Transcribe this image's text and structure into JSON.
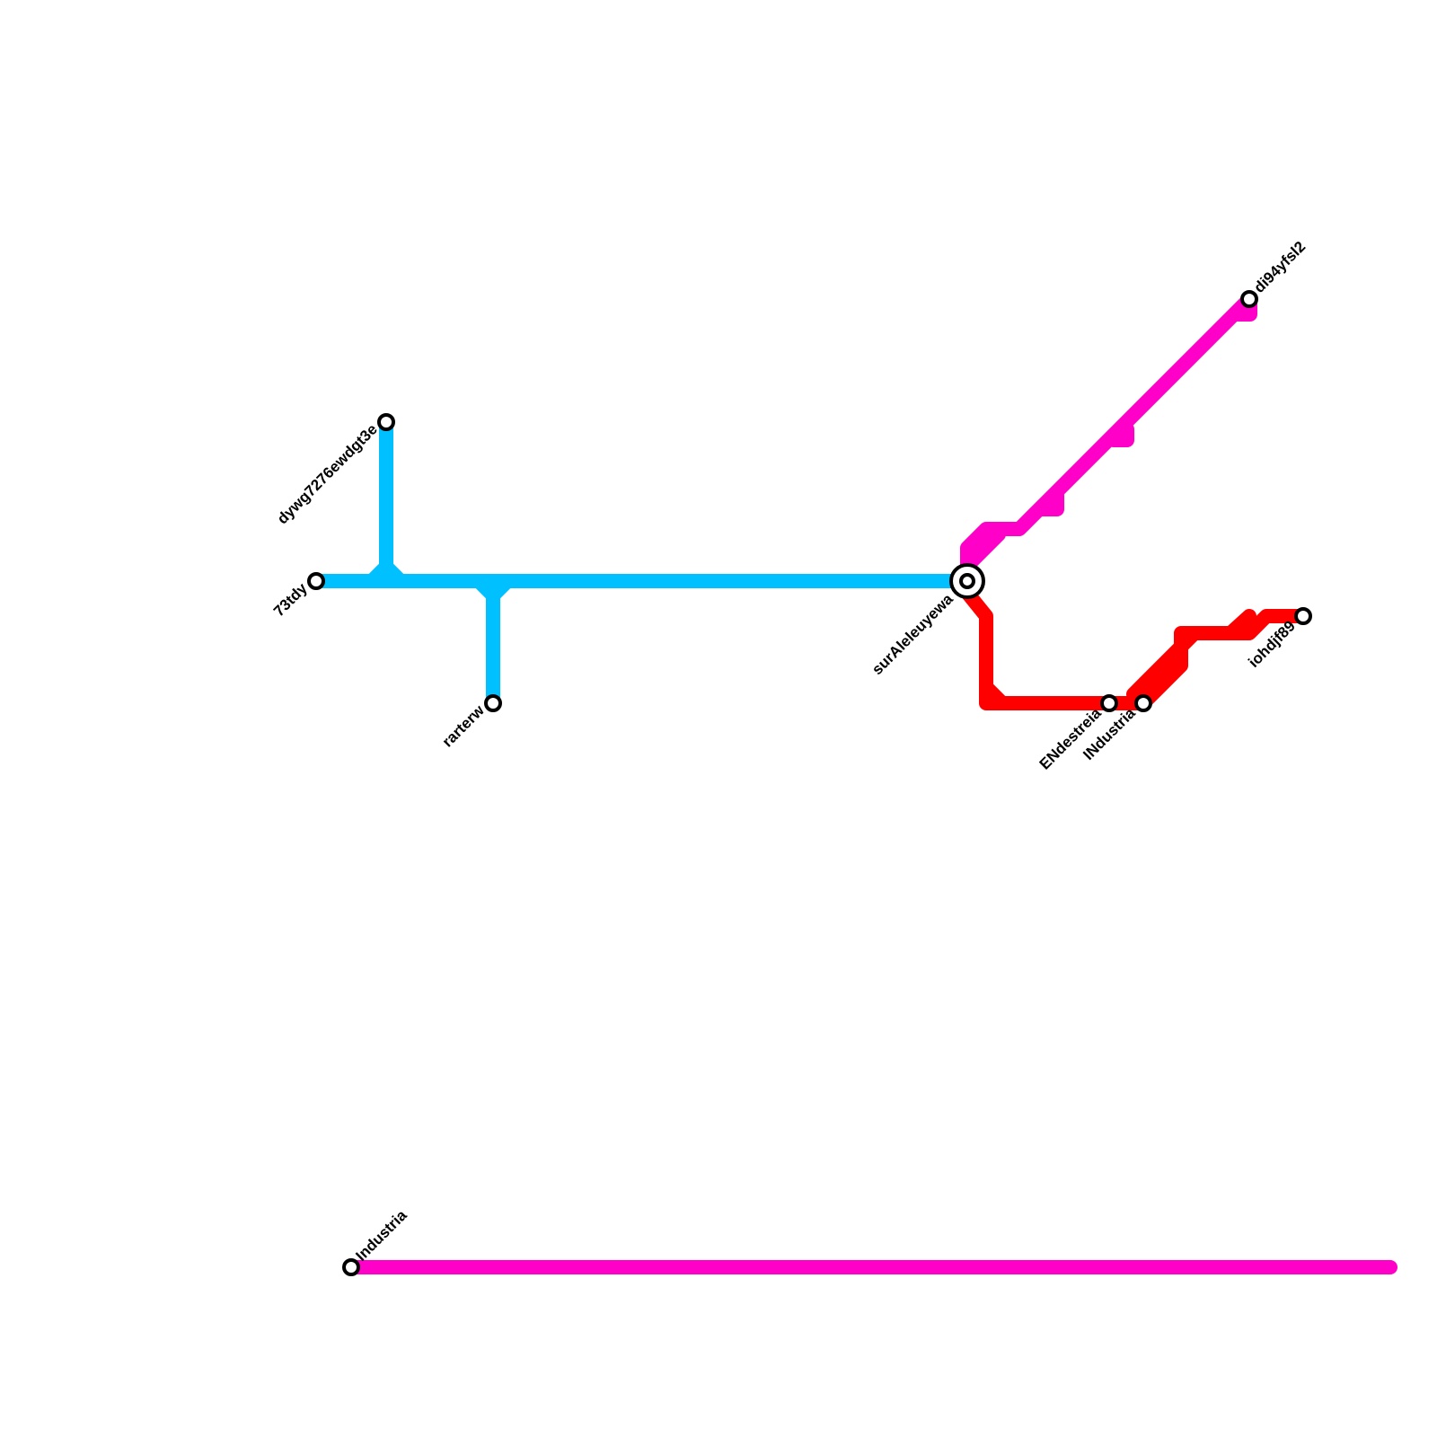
{
  "lines": [
    {
      "id": "cyan",
      "color": "#00C0FF"
    },
    {
      "id": "magenta",
      "color": "#FF00C8"
    },
    {
      "id": "red",
      "color": "#FF0000"
    }
  ],
  "stations": {
    "s73tdy": "73tdy",
    "dywg": "dywg7276ewdgt3e",
    "rarterw": "rarterw",
    "surAleleuyewa": "surAleleuyewa",
    "di94yfsl2": "di94yfsl2",
    "ENdestreia": "ENdestreia",
    "INdustria": "INdustria",
    "iohdjf89": "iohdjf89",
    "Industria": "Industria"
  }
}
